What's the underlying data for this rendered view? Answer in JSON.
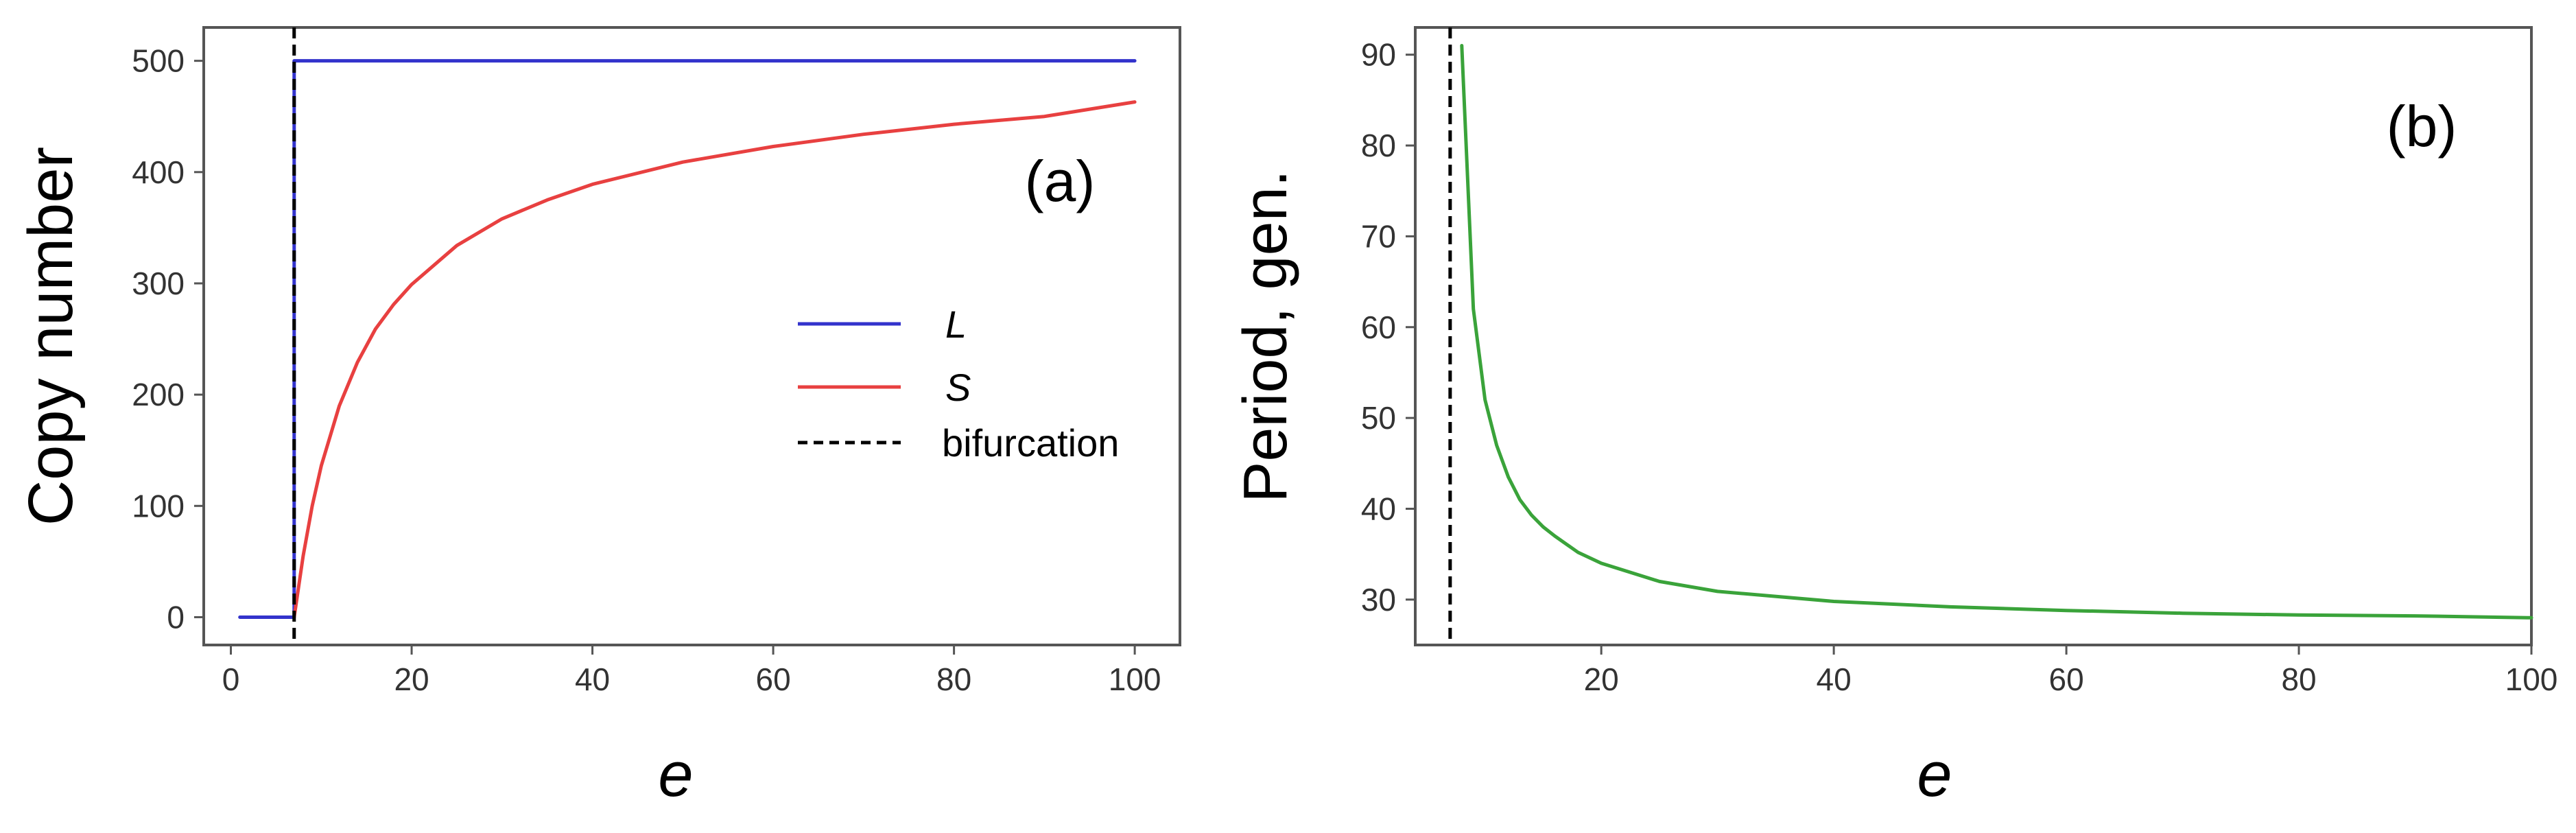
{
  "chart_data": [
    {
      "type": "line",
      "panel_label": "(a)",
      "xlabel": "e",
      "ylabel": "Copy number",
      "xlim": [
        -3,
        105
      ],
      "ylim": [
        -25,
        530
      ],
      "xticks": [
        0,
        20,
        40,
        60,
        80,
        100
      ],
      "yticks": [
        0,
        100,
        200,
        300,
        400,
        500
      ],
      "grid": false,
      "legend_position": "center-right",
      "bifurcation_x": 7,
      "series": [
        {
          "name": "L",
          "color": "#3333cc",
          "x": [
            1,
            7,
            7,
            100
          ],
          "y": [
            0,
            0,
            500,
            500
          ]
        },
        {
          "name": "S",
          "color": "#e84040",
          "x": [
            7,
            8,
            9,
            10,
            12,
            14,
            16,
            18,
            20,
            25,
            30,
            35,
            40,
            50,
            60,
            70,
            80,
            90,
            100
          ],
          "y": [
            0,
            55,
            100,
            136,
            190,
            229,
            259,
            281,
            299,
            334,
            358,
            375,
            389,
            409,
            423,
            434,
            443,
            450,
            463
          ]
        }
      ],
      "legend": [
        {
          "label": "L",
          "color": "#3333cc",
          "style": "solid"
        },
        {
          "label": "S",
          "color": "#e84040",
          "style": "solid"
        },
        {
          "label": "bifurcation",
          "color": "#000000",
          "style": "dashed"
        }
      ]
    },
    {
      "type": "line",
      "panel_label": "(b)",
      "xlabel": "e",
      "ylabel": "Period, gen.",
      "xlim": [
        4,
        100
      ],
      "ylim": [
        25,
        93
      ],
      "xticks": [
        20,
        40,
        60,
        80,
        100
      ],
      "yticks": [
        30,
        40,
        50,
        60,
        70,
        80,
        90
      ],
      "grid": false,
      "bifurcation_x": 7,
      "series": [
        {
          "name": "period",
          "color": "#3aa33a",
          "x": [
            8,
            9,
            10,
            11,
            12,
            13,
            14,
            15,
            16,
            18,
            20,
            25,
            30,
            40,
            50,
            60,
            70,
            80,
            90,
            100
          ],
          "y": [
            91,
            62,
            52,
            47,
            43.5,
            41,
            39.3,
            38,
            37,
            35.2,
            34,
            32,
            30.9,
            29.8,
            29.2,
            28.8,
            28.5,
            28.3,
            28.2,
            28
          ]
        }
      ]
    }
  ]
}
